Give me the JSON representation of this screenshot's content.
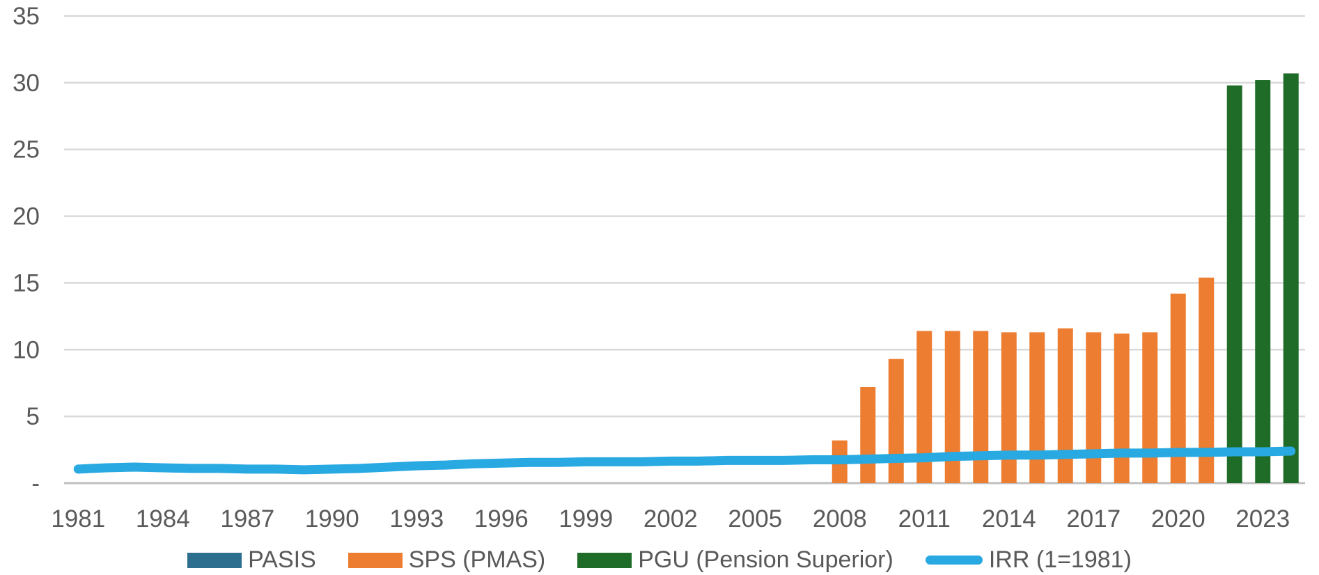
{
  "chart_data": {
    "type": "bar+line",
    "title": "",
    "xlabel": "",
    "ylabel": "",
    "grid": true,
    "legend_position": "bottom",
    "categories": [
      1981,
      1982,
      1983,
      1984,
      1985,
      1986,
      1987,
      1988,
      1989,
      1990,
      1991,
      1992,
      1993,
      1994,
      1995,
      1996,
      1997,
      1998,
      1999,
      2000,
      2001,
      2002,
      2003,
      2004,
      2005,
      2006,
      2007,
      2008,
      2009,
      2010,
      2011,
      2012,
      2013,
      2014,
      2015,
      2016,
      2017,
      2018,
      2019,
      2020,
      2021,
      2022,
      2023,
      2024
    ],
    "x_tick_labels": [
      "1981",
      "1984",
      "1987",
      "1990",
      "1993",
      "1996",
      "1999",
      "2002",
      "2005",
      "2008",
      "2011",
      "2014",
      "2017",
      "2020",
      "2023"
    ],
    "y_axis": {
      "min": 0,
      "max": 35,
      "ticks": [
        {
          "value": 35,
          "label": "35"
        },
        {
          "value": 30,
          "label": "30"
        },
        {
          "value": 25,
          "label": "25"
        },
        {
          "value": 20,
          "label": "20"
        },
        {
          "value": 15,
          "label": "15"
        },
        {
          "value": 10,
          "label": "10"
        },
        {
          "value": 5,
          "label": "5"
        },
        {
          "value": 0,
          "label": "-"
        }
      ]
    },
    "series": [
      {
        "name": "PASIS",
        "type": "bar",
        "color": "#2B6E8D",
        "values": [
          null,
          null,
          null,
          null,
          null,
          null,
          null,
          null,
          null,
          null,
          null,
          null,
          null,
          null,
          null,
          null,
          null,
          null,
          null,
          null,
          null,
          null,
          null,
          null,
          null,
          null,
          null,
          null,
          null,
          null,
          null,
          null,
          null,
          null,
          null,
          null,
          null,
          null,
          null,
          null,
          null,
          null,
          null,
          null
        ]
      },
      {
        "name": "SPS (PMAS)",
        "type": "bar",
        "color": "#ED7D31",
        "values": [
          null,
          null,
          null,
          null,
          null,
          null,
          null,
          null,
          null,
          null,
          null,
          null,
          null,
          null,
          null,
          null,
          null,
          null,
          null,
          null,
          null,
          null,
          null,
          null,
          null,
          null,
          null,
          3.2,
          7.2,
          9.3,
          11.4,
          11.4,
          11.4,
          11.3,
          11.3,
          11.6,
          11.3,
          11.2,
          11.3,
          14.2,
          15.4,
          null,
          null,
          null
        ]
      },
      {
        "name": "PGU (Pension Superior)",
        "type": "bar",
        "color": "#1E6C28",
        "values": [
          null,
          null,
          null,
          null,
          null,
          null,
          null,
          null,
          null,
          null,
          null,
          null,
          null,
          null,
          null,
          null,
          null,
          null,
          null,
          null,
          null,
          null,
          null,
          null,
          null,
          null,
          null,
          null,
          null,
          null,
          null,
          null,
          null,
          null,
          null,
          null,
          null,
          null,
          null,
          null,
          null,
          29.8,
          30.2,
          30.7
        ]
      },
      {
        "name": "IRR (1=1981)",
        "type": "line",
        "color": "#29A9E1",
        "values": [
          1.05,
          1.15,
          1.2,
          1.15,
          1.1,
          1.1,
          1.05,
          1.05,
          1.0,
          1.05,
          1.1,
          1.2,
          1.3,
          1.35,
          1.45,
          1.5,
          1.55,
          1.55,
          1.6,
          1.6,
          1.6,
          1.65,
          1.65,
          1.7,
          1.7,
          1.7,
          1.75,
          1.75,
          1.8,
          1.85,
          1.9,
          2.0,
          2.05,
          2.1,
          2.1,
          2.15,
          2.2,
          2.25,
          2.25,
          2.3,
          2.3,
          2.35,
          2.35,
          2.4
        ]
      }
    ]
  },
  "legend": {
    "items": [
      {
        "label": "PASIS",
        "color": "#2B6E8D",
        "shape": "rect"
      },
      {
        "label": "SPS (PMAS)",
        "color": "#ED7D31",
        "shape": "rect"
      },
      {
        "label": "PGU (Pension Superior)",
        "color": "#1E6C28",
        "shape": "rect"
      },
      {
        "label": "IRR (1=1981)",
        "color": "#29A9E1",
        "shape": "line"
      }
    ]
  },
  "colors": {
    "gridline": "#D9D9D9",
    "axis_line": "#BFBFBF",
    "tick_text": "#595959",
    "background": "#FFFFFF"
  }
}
